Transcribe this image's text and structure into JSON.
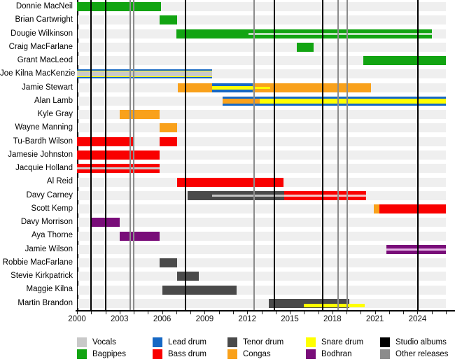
{
  "chart_data": {
    "type": "bar",
    "subtype": "member-timeline-gantt",
    "title": "",
    "xlabel": "",
    "ylabel": "",
    "axis": {
      "min": 2000,
      "max": 2026,
      "tick_interval": 1,
      "label_years": [
        2000,
        2003,
        2006,
        2009,
        2012,
        2015,
        2018,
        2021,
        2024
      ],
      "grid": "off",
      "legend_position": "bottom"
    },
    "colors": {
      "vocals": "#c9c9c9",
      "bagpipes": "#12a412",
      "lead_drum": "#1668c4",
      "bass_drum": "#f90000",
      "tenor_drum": "#4a4a4a",
      "congas": "#f9a11b",
      "snare_drum": "#ffff00",
      "bodhran": "#790d79",
      "studio_albums": "#000000",
      "other_releases": "#8c8c8c",
      "bagpipes_stripe": "#bce3bc",
      "bass_stripe": "#f2c4c4",
      "tenor_stripe": "#c4c4c4",
      "bodhran_stripe": "#e3b3e3"
    },
    "members": [
      {
        "name": "Donnie MacNeil",
        "bars": [
          {
            "from": 2000,
            "to": 2005.9,
            "role": "bagpipes",
            "layer": "full"
          }
        ]
      },
      {
        "name": "Brian Cartwright",
        "bars": [
          {
            "from": 2005.8,
            "to": 2007.05,
            "role": "bagpipes",
            "layer": "full"
          }
        ]
      },
      {
        "name": "Dougie Wilkinson",
        "bars": [
          {
            "from": 2007.0,
            "to": 2025.0,
            "role": "bagpipes",
            "layer": "full"
          },
          {
            "from": 2012.1,
            "to": 2025.0,
            "role": "bagpipes_stripe",
            "layer": "inner3"
          }
        ]
      },
      {
        "name": "Craig MacFarlane",
        "bars": [
          {
            "from": 2015.5,
            "to": 2016.7,
            "role": "bagpipes",
            "layer": "full"
          }
        ]
      },
      {
        "name": "Grant MacLeod",
        "bars": [
          {
            "from": 2020.2,
            "to": 2026,
            "role": "bagpipes",
            "layer": "full"
          }
        ]
      },
      {
        "name": "Joe Kilna MacKenzie",
        "bars": [
          {
            "from": 2000,
            "to": 2009.5,
            "role": "lead_drum",
            "layer": "full"
          },
          {
            "from": 2000,
            "to": 2009.5,
            "role": "snare_drum",
            "layer": "inner9"
          },
          {
            "from": 2000,
            "to": 2009.5,
            "role": "vocals",
            "layer": "inner7"
          }
        ]
      },
      {
        "name": "Jamie Stewart",
        "bars": [
          {
            "from": 2007.1,
            "to": 2009.5,
            "role": "congas",
            "layer": "full"
          },
          {
            "from": 2009.5,
            "to": 2012.4,
            "role": "lead_drum",
            "layer": "full"
          },
          {
            "from": 2009.5,
            "to": 2012.4,
            "role": "snare_drum",
            "layer": "inner5"
          },
          {
            "from": 2012.4,
            "to": 2020.7,
            "role": "congas",
            "layer": "full"
          },
          {
            "from": 2012.4,
            "to": 2013.6,
            "role": "snare_drum",
            "layer": "inner3"
          }
        ]
      },
      {
        "name": "Alan Lamb",
        "bars": [
          {
            "from": 2010.25,
            "to": 2026,
            "role": "lead_drum",
            "layer": "full"
          },
          {
            "from": 2010.25,
            "to": 2012.9,
            "role": "congas",
            "layer": "inner7"
          },
          {
            "from": 2012.9,
            "to": 2026,
            "role": "snare_drum",
            "layer": "inner7"
          }
        ]
      },
      {
        "name": "Kyle Gray",
        "bars": [
          {
            "from": 2003,
            "to": 2005.8,
            "role": "congas",
            "layer": "full"
          }
        ]
      },
      {
        "name": "Wayne Manning",
        "bars": [
          {
            "from": 2005.8,
            "to": 2007.05,
            "role": "congas",
            "layer": "full"
          }
        ]
      },
      {
        "name": "Tu-Bardh Wilson",
        "bars": [
          {
            "from": 2000,
            "to": 2004.05,
            "role": "bass_drum",
            "layer": "full"
          },
          {
            "from": 2005.8,
            "to": 2007.05,
            "role": "bass_drum",
            "layer": "full"
          }
        ]
      },
      {
        "name": "Jamesie Johnston",
        "bars": [
          {
            "from": 2000,
            "to": 2005.8,
            "role": "bass_drum",
            "layer": "full"
          }
        ]
      },
      {
        "name": "Jacquie Holland",
        "bars": [
          {
            "from": 2000,
            "to": 2005.8,
            "role": "bass_drum",
            "layer": "full"
          },
          {
            "from": 2000,
            "to": 2005.8,
            "role": "vocals",
            "layer": "inner3"
          }
        ]
      },
      {
        "name": "Al Reid",
        "bars": [
          {
            "from": 2007.05,
            "to": 2014.55,
            "role": "bass_drum",
            "layer": "full"
          }
        ]
      },
      {
        "name": "Davy Carney",
        "bars": [
          {
            "from": 2007.8,
            "to": 2014.6,
            "role": "tenor_drum",
            "layer": "full"
          },
          {
            "from": 2009.5,
            "to": 2014.6,
            "role": "tenor_stripe",
            "layer": "inner3"
          },
          {
            "from": 2014.6,
            "to": 2020.4,
            "role": "bass_drum",
            "layer": "full"
          },
          {
            "from": 2014.6,
            "to": 2020.4,
            "role": "bass_stripe",
            "layer": "inner3"
          }
        ]
      },
      {
        "name": "Scott Kemp",
        "bars": [
          {
            "from": 2020.9,
            "to": 2021.3,
            "role": "congas",
            "layer": "full"
          },
          {
            "from": 2021.3,
            "to": 2026,
            "role": "bass_drum",
            "layer": "full"
          }
        ]
      },
      {
        "name": "Davy Morrison",
        "bars": [
          {
            "from": 2001,
            "to": 2003,
            "role": "bodhran",
            "layer": "full"
          }
        ]
      },
      {
        "name": "Aya Thorne",
        "bars": [
          {
            "from": 2003,
            "to": 2005.8,
            "role": "bodhran",
            "layer": "full"
          }
        ]
      },
      {
        "name": "Jamie Wilson",
        "bars": [
          {
            "from": 2021.8,
            "to": 2026,
            "role": "bodhran",
            "layer": "full"
          },
          {
            "from": 2021.8,
            "to": 2026,
            "role": "bodhran_stripe",
            "layer": "inner3"
          }
        ]
      },
      {
        "name": "Robbie MacFarlane",
        "bars": [
          {
            "from": 2005.8,
            "to": 2007.05,
            "role": "tenor_drum",
            "layer": "full"
          }
        ]
      },
      {
        "name": "Stevie Kirkpatrick",
        "bars": [
          {
            "from": 2007.05,
            "to": 2008.6,
            "role": "tenor_drum",
            "layer": "full"
          }
        ]
      },
      {
        "name": "Maggie Kilna",
        "bars": [
          {
            "from": 2006,
            "to": 2011.25,
            "role": "tenor_drum",
            "layer": "full"
          }
        ]
      },
      {
        "name": "Martin Brandon",
        "bars": [
          {
            "from": 2013.5,
            "to": 2019.2,
            "role": "tenor_drum",
            "layer": "full"
          },
          {
            "from": 2016.0,
            "to": 2020.3,
            "role": "snare_drum",
            "layer": "low5"
          }
        ]
      }
    ],
    "releases": {
      "studio_albums": [
        2001,
        2002,
        2007.65,
        2013.9,
        2017.3,
        2024.05
      ],
      "other_releases": [
        2003.75,
        2004.0,
        2012.5,
        2018.4,
        2019.05
      ]
    },
    "legend": [
      {
        "label": "Vocals",
        "role": "vocals"
      },
      {
        "label": "Bagpipes",
        "role": "bagpipes"
      },
      {
        "label": "Lead drum",
        "role": "lead_drum"
      },
      {
        "label": "Bass drum",
        "role": "bass_drum"
      },
      {
        "label": "Tenor drum",
        "role": "tenor_drum"
      },
      {
        "label": "Congas",
        "role": "congas"
      },
      {
        "label": "Snare drum",
        "role": "snare_drum"
      },
      {
        "label": "Bodhran",
        "role": "bodhran"
      },
      {
        "label": "Studio albums",
        "role": "studio_albums"
      },
      {
        "label": "Other releases",
        "role": "other_releases"
      }
    ]
  }
}
